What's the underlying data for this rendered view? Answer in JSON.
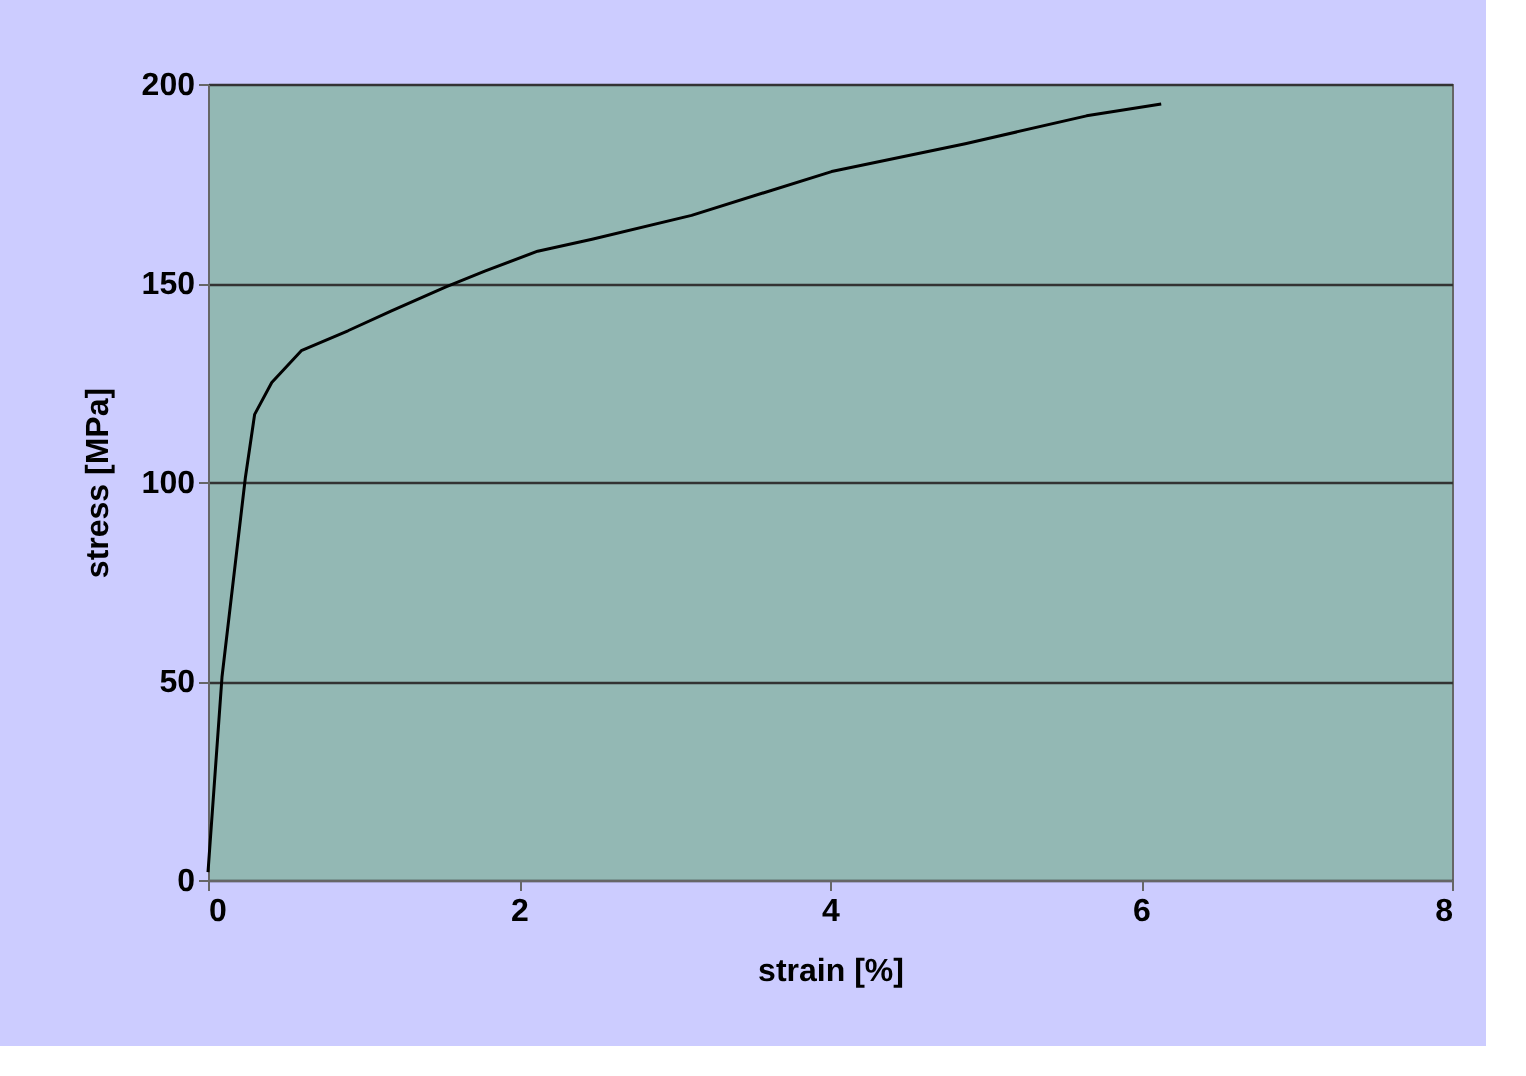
{
  "chart_data": {
    "type": "line",
    "xlabel": "strain  [%]",
    "ylabel": "stress [MPa]",
    "x": [
      0,
      0.09,
      0.24,
      0.3,
      0.41,
      0.6,
      0.9,
      1.18,
      1.53,
      1.78,
      2.12,
      2.47,
      3.11,
      4.01,
      4.87,
      5.65,
      6.13
    ],
    "series": [
      {
        "color": "#000000",
        "values": [
          2,
          51,
          101,
          117,
          125,
          133,
          138,
          143,
          149,
          153,
          158,
          161,
          167,
          178,
          185,
          192,
          195
        ]
      }
    ],
    "xlim": [
      0,
      8
    ],
    "xticks": [
      0,
      2,
      4,
      6,
      8
    ],
    "ylim": [
      0,
      200
    ],
    "yticks": [
      0,
      50,
      100,
      150,
      200
    ],
    "grid": "y",
    "marker": "none",
    "line_style": "solid"
  }
}
